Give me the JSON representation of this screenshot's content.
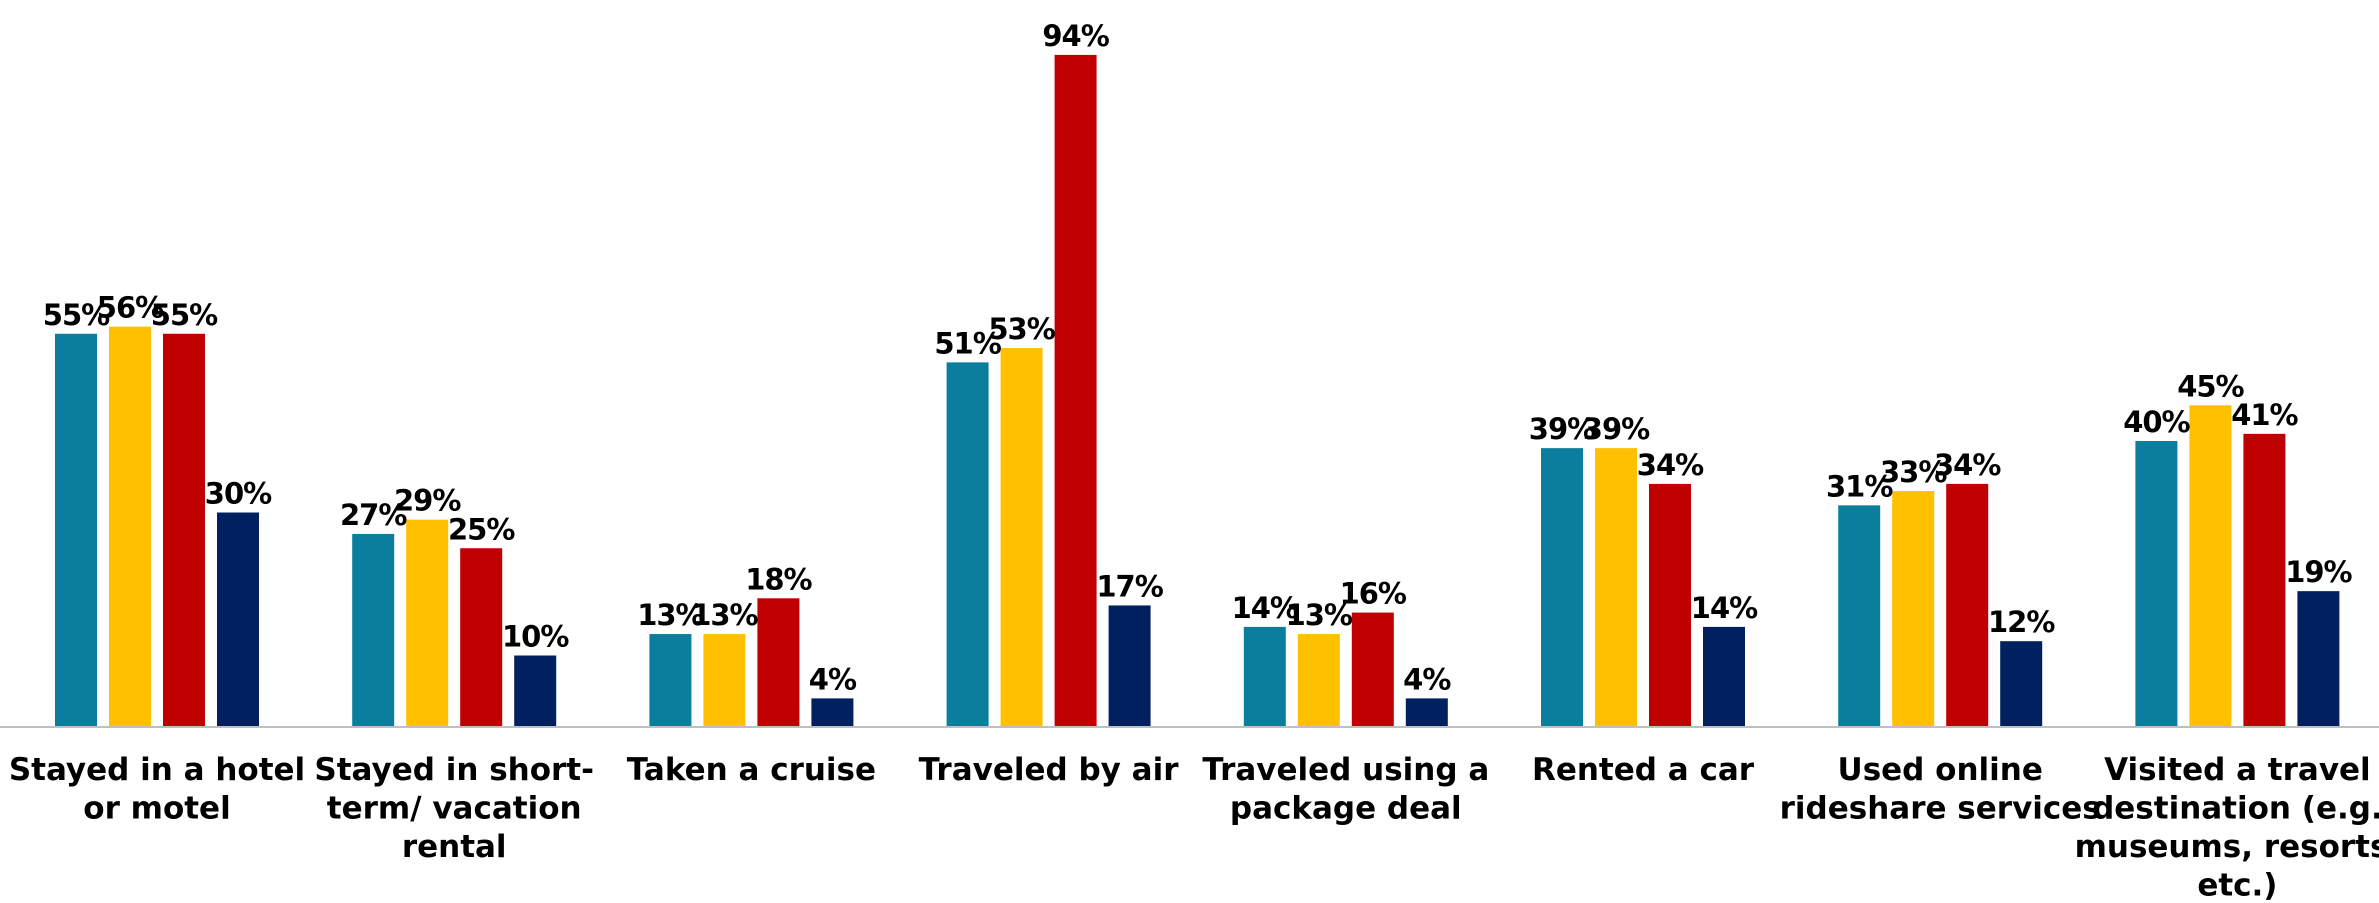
{
  "chart_data": {
    "type": "bar",
    "categories": [
      [
        "Stayed in a hotel",
        "or motel"
      ],
      [
        "Stayed in short-",
        "term/ vacation",
        "rental"
      ],
      [
        "Taken a cruise"
      ],
      [
        "Traveled by air"
      ],
      [
        "Traveled using a",
        "package deal"
      ],
      [
        "Rented a car"
      ],
      [
        "Used online",
        "rideshare services"
      ],
      [
        "Visited a travel",
        "destination (e.g.",
        "museums, resorts,",
        "etc.)"
      ]
    ],
    "series": [
      {
        "color": "#0A7E9C",
        "values": [
          55,
          27,
          13,
          51,
          14,
          39,
          31,
          40
        ],
        "labels": [
          "55%",
          "27%",
          "13%",
          "51%",
          "14%",
          "39%",
          "31%",
          "40%"
        ]
      },
      {
        "color": "#FFC000",
        "values": [
          56,
          29,
          13,
          53,
          13,
          39,
          33,
          45
        ],
        "labels": [
          "56%",
          "29%",
          "13%",
          "53%",
          "13%",
          "39%",
          "33%",
          "45%"
        ]
      },
      {
        "color": "#C00000",
        "values": [
          55,
          25,
          18,
          94,
          16,
          34,
          34,
          41
        ],
        "labels": [
          "55%",
          "25%",
          "18%",
          "94%",
          "16%",
          "34%",
          "34%",
          "41%"
        ]
      },
      {
        "color": "#002060",
        "values": [
          30,
          10,
          4,
          17,
          4,
          14,
          12,
          19
        ],
        "labels": [
          "30%",
          "10%",
          "4%",
          "17%",
          "4%",
          "14%",
          "12%",
          "19%"
        ]
      }
    ],
    "ylim": [
      0,
      100
    ],
    "value_format": "percent",
    "legend": "none",
    "grid": false
  }
}
